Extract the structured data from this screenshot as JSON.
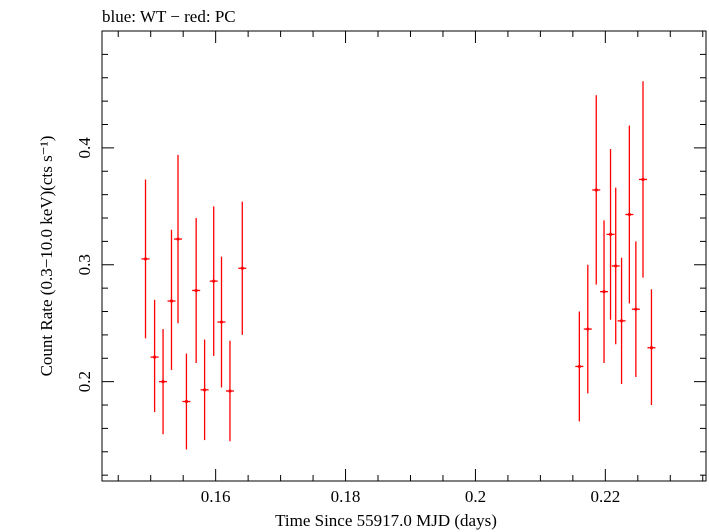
{
  "chart_data": {
    "type": "scatter",
    "title": "blue: WT − red: PC",
    "xlabel": "Time Since 55917.0 MJD (days)",
    "ylabel": "Count Rate (0.3−10.0 keV)(cts s⁻¹)",
    "xlim": [
      0.1425,
      0.2355
    ],
    "ylim": [
      0.115,
      0.5
    ],
    "xticks": [
      {
        "value": 0.16,
        "label": "0.16"
      },
      {
        "value": 0.18,
        "label": "0.18"
      },
      {
        "value": 0.2,
        "label": "0.2"
      },
      {
        "value": 0.22,
        "label": "0.22"
      }
    ],
    "yticks": [
      {
        "value": 0.2,
        "label": "0.2"
      },
      {
        "value": 0.3,
        "label": "0.3"
      },
      {
        "value": 0.4,
        "label": "0.4"
      }
    ],
    "grid": false,
    "colors": {
      "PC": "#ff0000",
      "frame": "#000000"
    },
    "series": [
      {
        "color": "#ff0000",
        "points": [
          {
            "x": 0.1492,
            "y": 0.305,
            "ylo": 0.237,
            "yhi": 0.373
          },
          {
            "x": 0.1506,
            "y": 0.221,
            "ylo": 0.174,
            "yhi": 0.27
          },
          {
            "x": 0.1519,
            "y": 0.2,
            "ylo": 0.155,
            "yhi": 0.245
          },
          {
            "x": 0.1532,
            "y": 0.269,
            "ylo": 0.21,
            "yhi": 0.33
          },
          {
            "x": 0.1542,
            "y": 0.322,
            "ylo": 0.25,
            "yhi": 0.394
          },
          {
            "x": 0.1555,
            "y": 0.183,
            "ylo": 0.142,
            "yhi": 0.224
          },
          {
            "x": 0.157,
            "y": 0.278,
            "ylo": 0.216,
            "yhi": 0.34
          },
          {
            "x": 0.1583,
            "y": 0.193,
            "ylo": 0.15,
            "yhi": 0.236
          },
          {
            "x": 0.1597,
            "y": 0.286,
            "ylo": 0.222,
            "yhi": 0.35
          },
          {
            "x": 0.1609,
            "y": 0.251,
            "ylo": 0.195,
            "yhi": 0.307
          },
          {
            "x": 0.1622,
            "y": 0.192,
            "ylo": 0.149,
            "yhi": 0.235
          },
          {
            "x": 0.1641,
            "y": 0.297,
            "ylo": 0.24,
            "yhi": 0.354
          },
          {
            "x": 0.216,
            "y": 0.213,
            "ylo": 0.166,
            "yhi": 0.26
          },
          {
            "x": 0.2173,
            "y": 0.245,
            "ylo": 0.19,
            "yhi": 0.3
          },
          {
            "x": 0.2186,
            "y": 0.364,
            "ylo": 0.283,
            "yhi": 0.445
          },
          {
            "x": 0.2198,
            "y": 0.277,
            "ylo": 0.216,
            "yhi": 0.338
          },
          {
            "x": 0.2208,
            "y": 0.326,
            "ylo": 0.253,
            "yhi": 0.399
          },
          {
            "x": 0.2216,
            "y": 0.299,
            "ylo": 0.232,
            "yhi": 0.366
          },
          {
            "x": 0.2225,
            "y": 0.252,
            "ylo": 0.198,
            "yhi": 0.306
          },
          {
            "x": 0.2237,
            "y": 0.343,
            "ylo": 0.267,
            "yhi": 0.419
          },
          {
            "x": 0.2247,
            "y": 0.262,
            "ylo": 0.204,
            "yhi": 0.32
          },
          {
            "x": 0.2258,
            "y": 0.373,
            "ylo": 0.289,
            "yhi": 0.457
          },
          {
            "x": 0.2271,
            "y": 0.229,
            "ylo": 0.18,
            "yhi": 0.279
          }
        ]
      }
    ]
  }
}
